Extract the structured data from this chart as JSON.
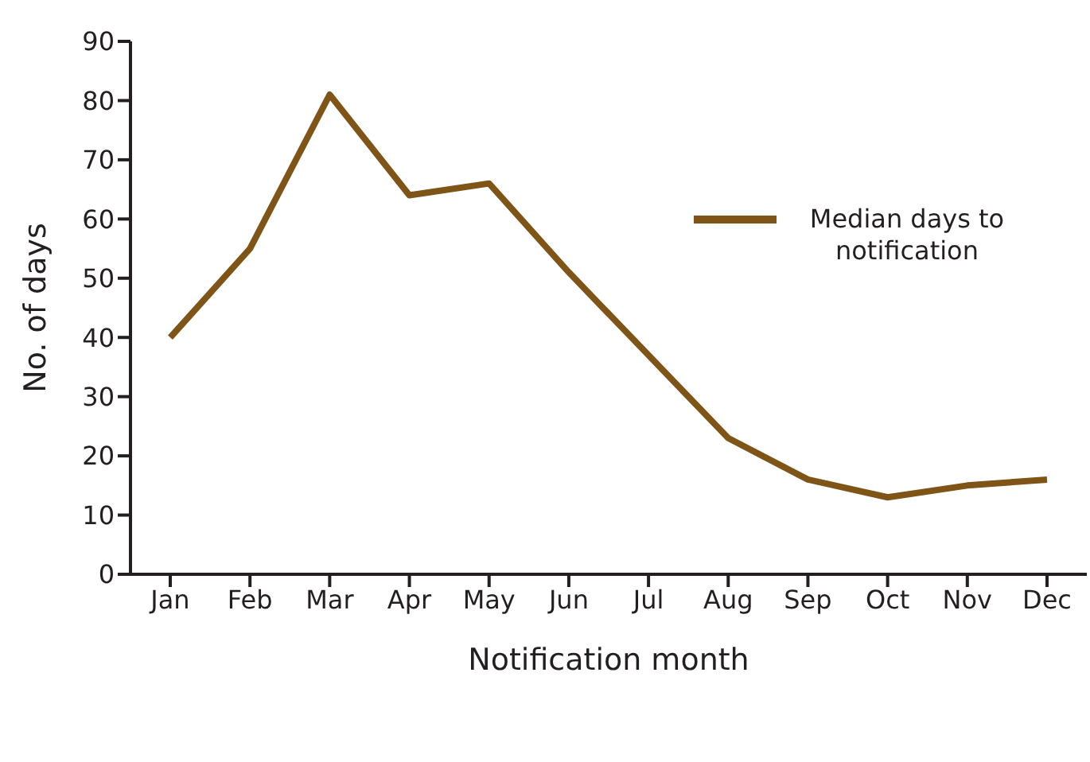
{
  "chart_data": {
    "type": "line",
    "xlabel": "Notification month",
    "ylabel": "No. of days",
    "categories": [
      "Jan",
      "Feb",
      "Mar",
      "Apr",
      "May",
      "Jun",
      "Jul",
      "Aug",
      "Sep",
      "Oct",
      "Nov",
      "Dec"
    ],
    "series": [
      {
        "name": "Median days to notification",
        "color": "#7f5417",
        "values": [
          40,
          55,
          81,
          64,
          66,
          51,
          37,
          23,
          16,
          13,
          15,
          16
        ]
      }
    ],
    "ylim": [
      0,
      90
    ],
    "yticks": [
      0,
      10,
      20,
      30,
      40,
      50,
      60,
      70,
      80,
      90
    ],
    "grid": false,
    "legend": "top right",
    "marker": "none",
    "line_style": "solid"
  }
}
